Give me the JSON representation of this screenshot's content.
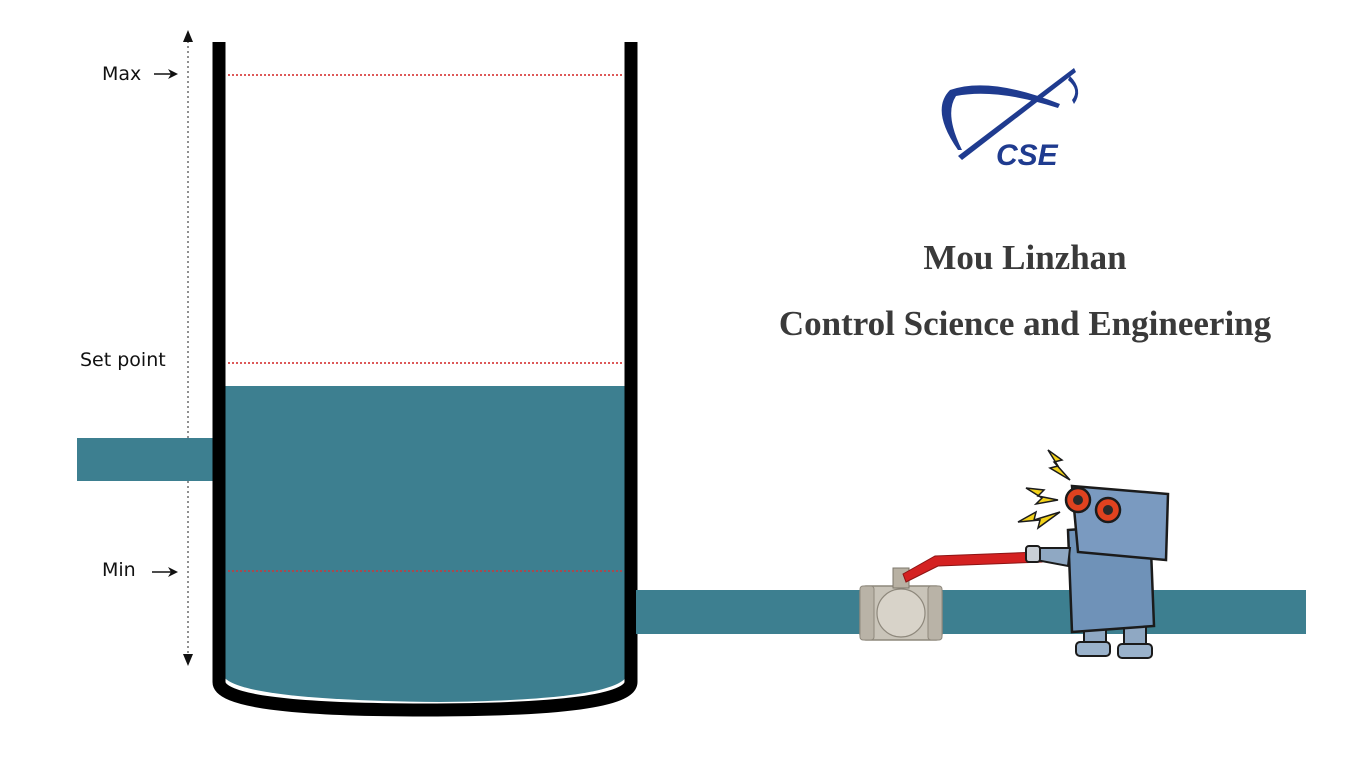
{
  "labels": {
    "max": "Max",
    "set_point": "Set point",
    "min": "Min"
  },
  "logo": {
    "text": "CSE"
  },
  "author": "Mou Linzhan",
  "department": "Control Science and Engineering",
  "tank": {
    "water_level_fraction": 0.52,
    "max_level_fraction": 0.95,
    "set_point_fraction": 0.56,
    "min_level_fraction": 0.21
  },
  "colors": {
    "water": "#3d7f90",
    "tank_wall": "#000000",
    "level_marker": "#d22222",
    "logo_blue": "#1f3b8f",
    "valve_handle": "#d42121",
    "robot_body": "#6f92b8",
    "robot_eye": "#e0421f",
    "spark": "#f2d21a"
  }
}
